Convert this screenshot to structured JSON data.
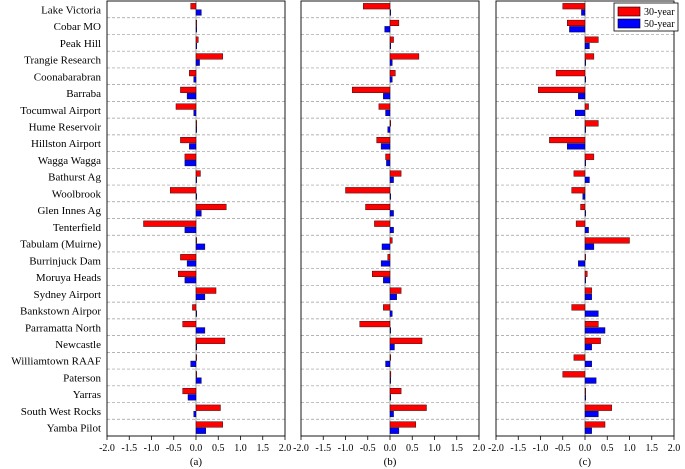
{
  "chart_data": {
    "type": "bar",
    "orientation": "horizontal",
    "categories": [
      "Lake Victoria",
      "Cobar MO",
      "Peak Hill",
      "Trangie Research",
      "Coonabarabran",
      "Barraba",
      "Tocumwal Airport",
      "Hume Reservoir",
      "Hillston Airport",
      "Wagga Wagga",
      "Bathurst Ag",
      "Woolbrook",
      "Glen Innes Ag",
      "Tenterfield",
      "Tabulam (Muirne)",
      "Burrinjuck Dam",
      "Moruya Heads",
      "Sydney Airport",
      "Bankstown Airpor",
      "Parramatta North",
      "Newcastle",
      "Williamtown RAAF",
      "Paterson",
      "Yarras",
      "South West Rocks",
      "Yamba Pilot"
    ],
    "xlim": [
      -2.0,
      2.0
    ],
    "xticks": [
      "-2.0",
      "-1.5",
      "-1.0",
      "-0.5",
      "0.0",
      "0.5",
      "1.0",
      "1.5",
      "2.0"
    ],
    "xtick_values": [
      -2.0,
      -1.5,
      -1.0,
      -0.5,
      0.0,
      0.5,
      1.0,
      1.5,
      2.0
    ],
    "grid": "dashed horizontal",
    "legend_placement": "top-right of panel (c)",
    "series_legend": [
      {
        "name": "30-year",
        "color": "#ff0000"
      },
      {
        "name": "50-year",
        "color": "#0000ff"
      }
    ],
    "panels": [
      {
        "label": "(a)",
        "series": [
          {
            "name": "30-year",
            "values": [
              -0.12,
              0.0,
              0.05,
              0.6,
              -0.15,
              -0.35,
              -0.45,
              0.0,
              -0.35,
              -0.25,
              0.1,
              -0.58,
              0.68,
              -1.18,
              0.0,
              -0.35,
              -0.4,
              0.45,
              -0.08,
              -0.3,
              0.65,
              0.0,
              0.0,
              -0.3,
              0.55,
              0.6
            ]
          },
          {
            "name": "50-year",
            "values": [
              0.12,
              0.0,
              0.0,
              0.08,
              -0.05,
              -0.2,
              -0.05,
              0.0,
              -0.15,
              -0.25,
              0.0,
              0.0,
              0.12,
              -0.25,
              0.2,
              -0.2,
              -0.25,
              0.2,
              0.0,
              0.2,
              0.0,
              -0.12,
              0.12,
              -0.18,
              -0.05,
              0.22
            ]
          }
        ]
      },
      {
        "label": "(b)",
        "series": [
          {
            "name": "30-year",
            "values": [
              -0.6,
              0.2,
              0.08,
              0.65,
              0.12,
              -0.85,
              -0.25,
              0.0,
              -0.3,
              -0.1,
              0.25,
              -1.0,
              -0.55,
              -0.35,
              0.05,
              -0.05,
              -0.4,
              0.25,
              -0.15,
              -0.68,
              0.72,
              0.0,
              0.02,
              0.25,
              0.82,
              0.58
            ]
          },
          {
            "name": "50-year",
            "values": [
              0.0,
              -0.12,
              0.0,
              0.05,
              0.05,
              -0.15,
              -0.1,
              -0.05,
              -0.2,
              -0.08,
              0.08,
              0.0,
              0.08,
              0.08,
              -0.18,
              -0.2,
              -0.15,
              0.15,
              0.05,
              0.0,
              0.1,
              -0.1,
              0.0,
              0.0,
              0.08,
              0.2
            ]
          }
        ]
      },
      {
        "label": "(c)",
        "series": [
          {
            "name": "30-year",
            "values": [
              -0.5,
              -0.4,
              0.3,
              0.2,
              -0.65,
              -1.05,
              0.08,
              0.3,
              -0.8,
              0.2,
              -0.25,
              -0.3,
              -0.1,
              -0.2,
              1.0,
              0.0,
              0.05,
              0.15,
              -0.3,
              0.3,
              0.35,
              -0.25,
              -0.5,
              0.0,
              0.6,
              0.45
            ]
          },
          {
            "name": "50-year",
            "values": [
              -0.08,
              -0.35,
              0.1,
              0.0,
              0.0,
              -0.15,
              -0.22,
              0.0,
              -0.4,
              0.0,
              0.1,
              -0.05,
              0.0,
              0.08,
              0.2,
              -0.15,
              0.0,
              0.15,
              0.3,
              0.45,
              0.15,
              0.15,
              0.25,
              0.0,
              0.3,
              0.15
            ]
          }
        ]
      }
    ]
  }
}
